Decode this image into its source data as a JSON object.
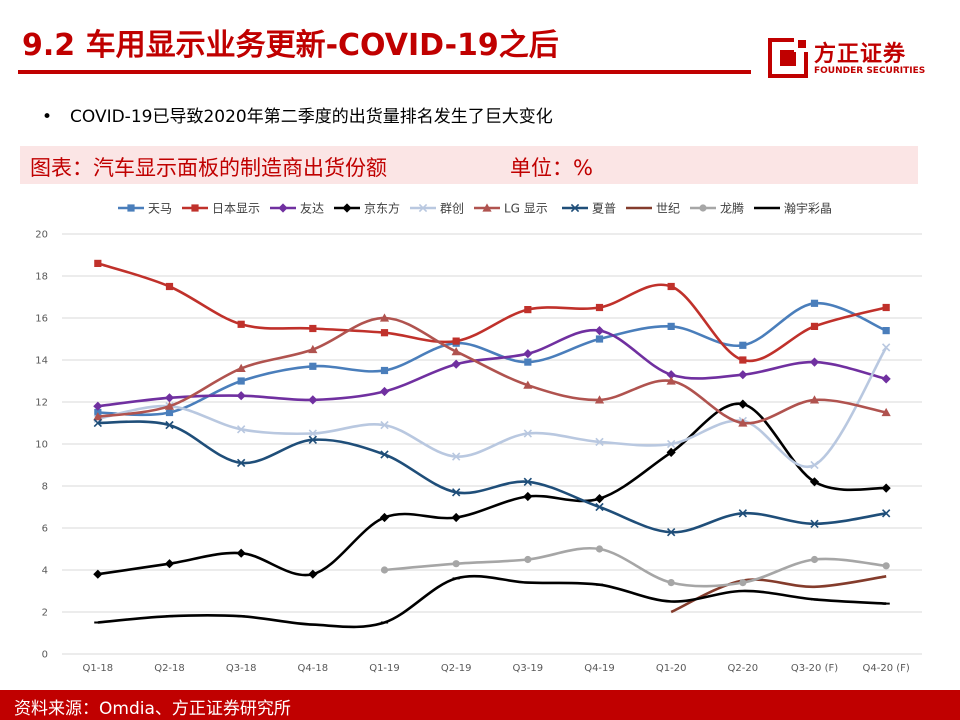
{
  "header": {
    "title": "9.2 车用显示业务更新-COVID-19之后",
    "logo_cn": "方正证券",
    "logo_en": "FOUNDER SECURITIES"
  },
  "bullet": "COVID-19已导致2020年第二季度的出货量排名发生了巨大变化",
  "chart_header": {
    "title": "图表：汽车显示面板的制造商出货份额",
    "unit": "单位：%"
  },
  "footer": {
    "source": "资料来源：Omdia、方正证券研究所"
  },
  "colors": {
    "brand": "#c00000",
    "header_bg": "#fbe5e5",
    "grid": "#d9d9d9"
  },
  "chart_data": {
    "type": "line",
    "title": "汽车显示面板的制造商出货份额",
    "ylabel": "%",
    "ylim": [
      0,
      20
    ],
    "yticks": [
      0,
      2,
      4,
      6,
      8,
      10,
      12,
      14,
      16,
      18,
      20
    ],
    "grid": true,
    "legend_position": "top",
    "categories": [
      "Q1-18",
      "Q2-18",
      "Q3-18",
      "Q4-18",
      "Q1-19",
      "Q2-19",
      "Q3-19",
      "Q4-19",
      "Q1-20",
      "Q2-20",
      "Q3-20 (F)",
      "Q4-20 (F)"
    ],
    "series": [
      {
        "name": "天马",
        "color": "#4a7ebb",
        "marker": "square",
        "values": [
          11.5,
          11.5,
          13.0,
          13.7,
          13.5,
          14.8,
          13.9,
          15.0,
          15.6,
          14.7,
          16.7,
          15.4
        ]
      },
      {
        "name": "日本显示",
        "color": "#c0312b",
        "marker": "square",
        "values": [
          18.6,
          17.5,
          15.7,
          15.5,
          15.3,
          14.9,
          16.4,
          16.5,
          17.5,
          14.0,
          15.6,
          16.5
        ]
      },
      {
        "name": "友达",
        "color": "#7030a0",
        "marker": "diamond",
        "values": [
          11.8,
          12.2,
          12.3,
          12.1,
          12.5,
          13.8,
          14.3,
          15.4,
          13.3,
          13.3,
          13.9,
          13.1
        ]
      },
      {
        "name": "京东方",
        "color": "#000000",
        "marker": "diamond",
        "values": [
          3.8,
          4.3,
          4.8,
          3.8,
          6.5,
          6.5,
          7.5,
          7.4,
          9.6,
          11.9,
          8.2,
          7.9
        ]
      },
      {
        "name": "群创",
        "color": "#b9c8e0",
        "marker": "x",
        "values": [
          11.2,
          11.8,
          10.7,
          10.5,
          10.9,
          9.4,
          10.5,
          10.1,
          10.0,
          11.1,
          9.0,
          14.6
        ]
      },
      {
        "name": "LG 显示",
        "color": "#b0534f",
        "marker": "triangle",
        "values": [
          11.3,
          11.8,
          13.6,
          14.5,
          16.0,
          14.4,
          12.8,
          12.1,
          13.0,
          11.0,
          12.1,
          11.5
        ]
      },
      {
        "name": "夏普",
        "color": "#1f4e79",
        "marker": "x",
        "values": [
          11.0,
          10.9,
          9.1,
          10.2,
          9.5,
          7.7,
          8.2,
          7.0,
          5.8,
          6.7,
          6.2,
          6.7
        ]
      },
      {
        "name": "世纪",
        "color": "#843c2c",
        "marker": "none",
        "values": [
          null,
          null,
          null,
          null,
          null,
          null,
          null,
          null,
          2.0,
          3.5,
          3.2,
          3.7
        ]
      },
      {
        "name": "龙腾",
        "color": "#a6a6a6",
        "marker": "circle",
        "values": [
          null,
          null,
          null,
          null,
          4.0,
          4.3,
          4.5,
          5.0,
          3.4,
          3.4,
          4.5,
          4.2
        ]
      },
      {
        "name": "瀚宇彩晶",
        "color": "#000000",
        "marker": "dash",
        "values": [
          1.5,
          1.8,
          1.8,
          1.4,
          1.5,
          3.6,
          3.4,
          3.3,
          2.5,
          3.0,
          2.6,
          2.4
        ]
      }
    ]
  }
}
